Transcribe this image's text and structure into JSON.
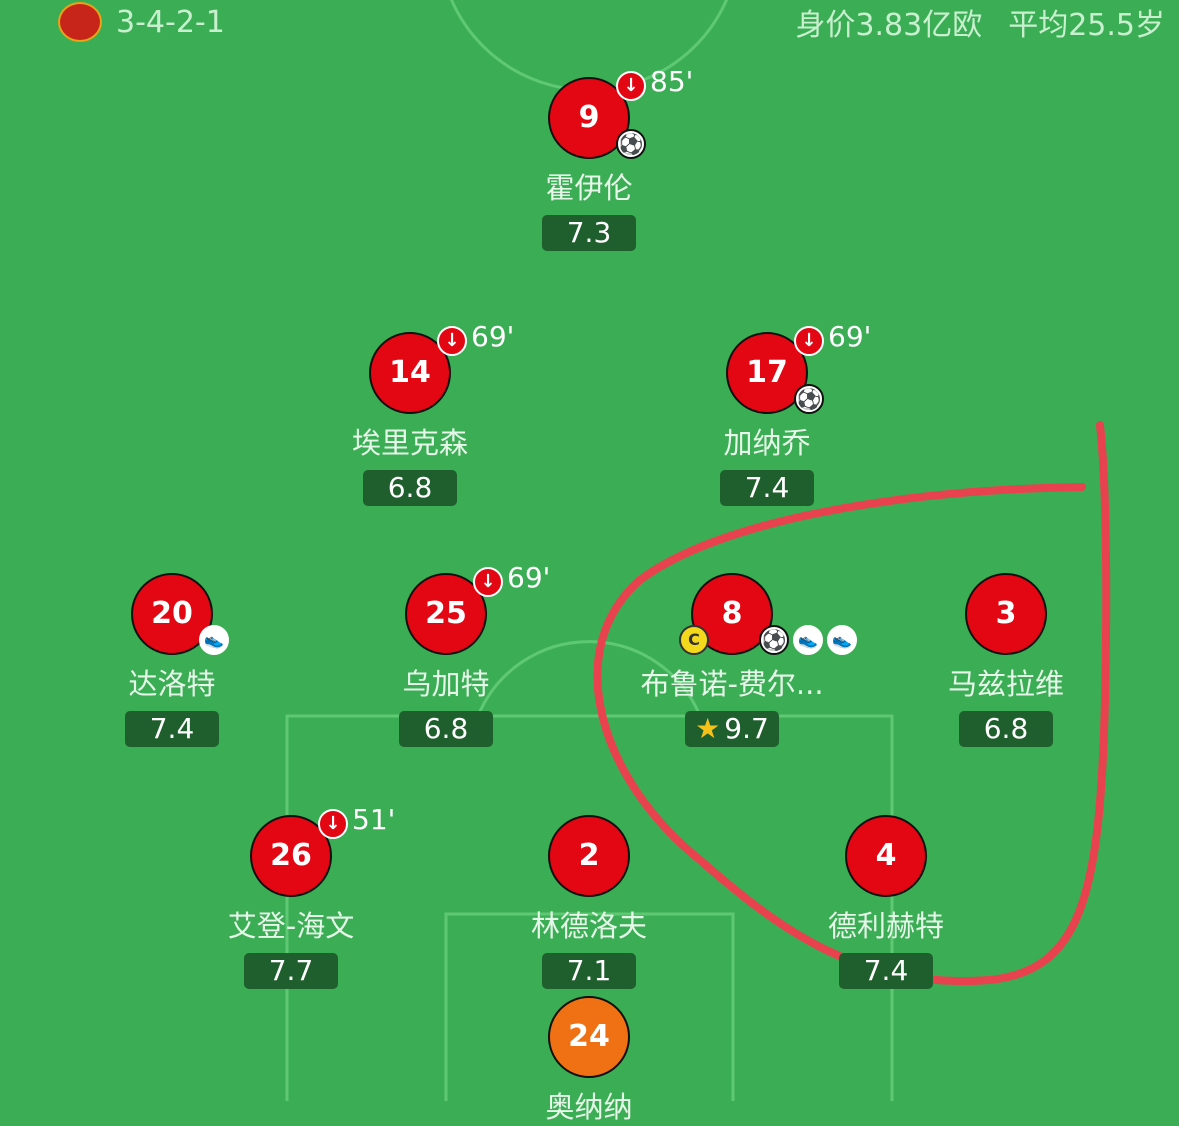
{
  "header": {
    "formation": "3-4-2-1",
    "market_value": "身价3.83亿欧",
    "average_age": "平均25.5岁"
  },
  "players": [
    {
      "number": "9",
      "name": "霍伊伦",
      "rating": "7.3",
      "sub_minute": "85'",
      "goals": 1,
      "assists": 0
    },
    {
      "number": "14",
      "name": "埃里克森",
      "rating": "6.8",
      "sub_minute": "69'",
      "goals": 0,
      "assists": 0
    },
    {
      "number": "17",
      "name": "加纳乔",
      "rating": "7.4",
      "sub_minute": "69'",
      "goals": 1,
      "assists": 0
    },
    {
      "number": "20",
      "name": "达洛特",
      "rating": "7.4",
      "goals": 0,
      "assists": 1
    },
    {
      "number": "25",
      "name": "乌加特",
      "rating": "6.8",
      "sub_minute": "69'",
      "goals": 0,
      "assists": 0
    },
    {
      "number": "8",
      "name": "布鲁诺-费尔...",
      "rating": "9.7",
      "captain_label": "C",
      "goals": 1,
      "assists": 2,
      "man_of_match": true
    },
    {
      "number": "3",
      "name": "马兹拉维",
      "rating": "6.8",
      "goals": 0,
      "assists": 0
    },
    {
      "number": "26",
      "name": "艾登-海文",
      "rating": "7.7",
      "sub_minute": "51'",
      "goals": 0,
      "assists": 0
    },
    {
      "number": "2",
      "name": "林德洛夫",
      "rating": "7.1",
      "goals": 0,
      "assists": 0
    },
    {
      "number": "4",
      "name": "德利赫特",
      "rating": "7.4",
      "goals": 0,
      "assists": 0
    },
    {
      "number": "24",
      "name": "奥纳纳",
      "goalkeeper": true
    }
  ],
  "colors": {
    "pitch": "#3bae55",
    "player": "#e30613",
    "goalkeeper": "#f07014",
    "rating_bg": "#1f5f2d",
    "annotation": "#e8424f"
  }
}
